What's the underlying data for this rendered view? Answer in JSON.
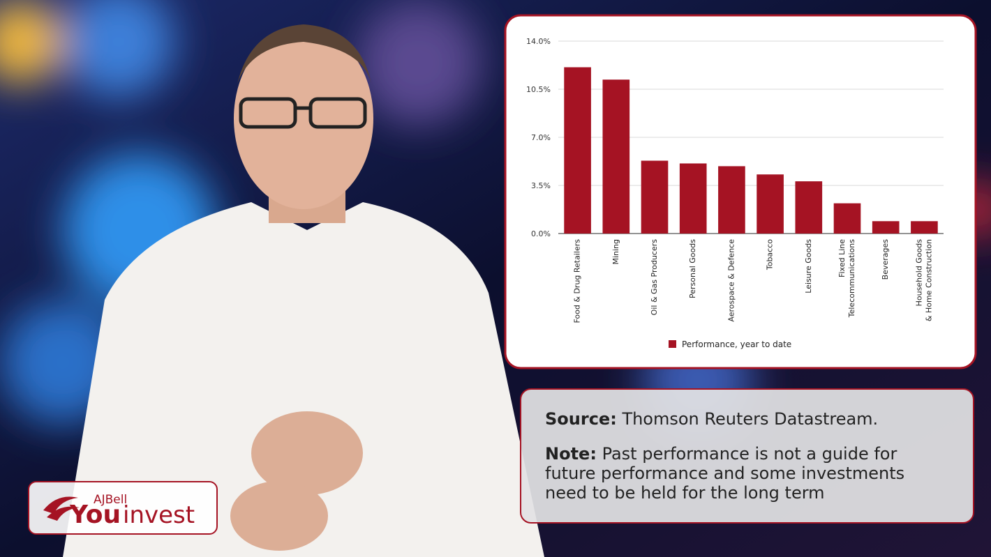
{
  "chart_data": {
    "type": "bar",
    "categories": [
      "Food & Drug Retailers",
      "Mining",
      "Oil & Gas Producers",
      "Personal Goods",
      "Aerospace & Defence",
      "Tobacco",
      "Leisure Goods",
      "Fixed Line\nTelecommunications",
      "Beverages",
      "Household Goods\n& Home Construction"
    ],
    "series": [
      {
        "name": "Performance, year to date",
        "color": "#a51323",
        "values": [
          12.1,
          11.2,
          5.3,
          5.1,
          4.9,
          4.3,
          3.8,
          2.2,
          0.9,
          0.9
        ]
      }
    ],
    "ylim": [
      0,
      14
    ],
    "yticks": [
      {
        "value": 0,
        "label": "0.0%"
      },
      {
        "value": 3.5,
        "label": "3.5%"
      },
      {
        "value": 7,
        "label": "7.0%"
      },
      {
        "value": 10.5,
        "label": "10.5%"
      },
      {
        "value": 14,
        "label": "14.0%"
      }
    ],
    "grid": true,
    "legend": "bottom"
  },
  "source_panel": {
    "source_label": "Source:",
    "source_text": "Thomson Reuters Datastream.",
    "note_label": "Note:",
    "note_text": "Past performance is not a guide for\nfuture performance and some investments\nneed to be held for the long term"
  },
  "logo": {
    "brand": "AJBell",
    "you": "You",
    "invest": "invest"
  }
}
